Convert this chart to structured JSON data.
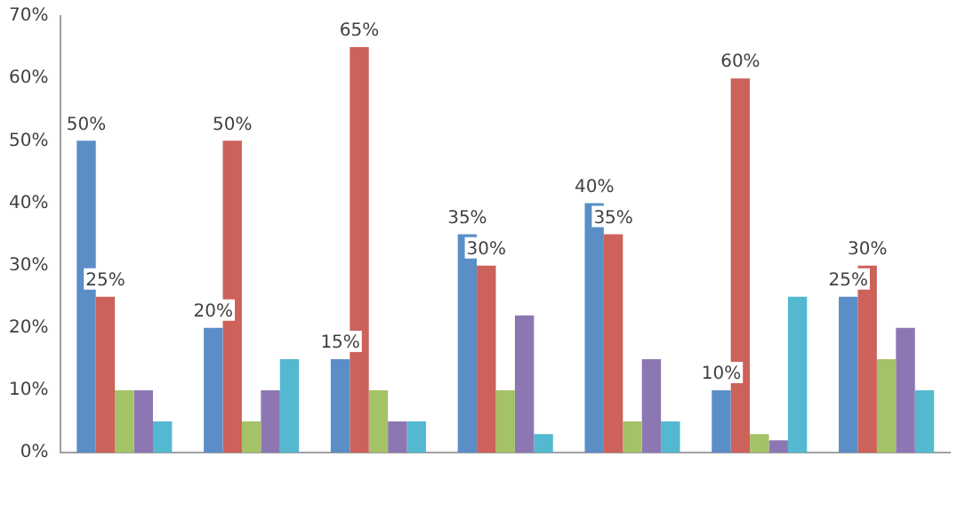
{
  "chart_data": {
    "type": "bar",
    "categories": [
      null,
      null,
      null,
      null,
      null,
      null,
      null
    ],
    "series": [
      {
        "color": "#5b8ec7",
        "values": [
          50,
          20,
          15,
          35,
          40,
          10,
          25
        ],
        "value_labels": [
          "50%",
          "20%",
          "15%",
          "35%",
          "40%",
          "10%",
          "25%"
        ]
      },
      {
        "color": "#cd625a",
        "values": [
          25,
          50,
          65,
          30,
          35,
          60,
          30
        ],
        "value_labels": [
          "25%",
          "50%",
          "65%",
          "30%",
          "35%",
          "60%",
          "30%"
        ]
      },
      {
        "color": "#a4c266",
        "values": [
          10,
          5,
          10,
          10,
          5,
          3,
          15
        ]
      },
      {
        "color": "#8d77b3",
        "values": [
          10,
          10,
          5,
          22,
          15,
          2,
          20
        ]
      },
      {
        "color": "#54b8d1",
        "values": [
          5,
          15,
          5,
          3,
          5,
          25,
          10
        ]
      }
    ],
    "ylim": [
      0,
      70
    ],
    "yticks": [
      {
        "value": 0,
        "label": "0%"
      },
      {
        "value": 10,
        "label": "10%"
      },
      {
        "value": 20,
        "label": "20%"
      },
      {
        "value": 30,
        "label": "30%"
      },
      {
        "value": 40,
        "label": "40%"
      },
      {
        "value": 50,
        "label": "50%"
      },
      {
        "value": 60,
        "label": "60%"
      },
      {
        "value": 70,
        "label": "70%"
      }
    ],
    "grid": false,
    "legend": false
  }
}
